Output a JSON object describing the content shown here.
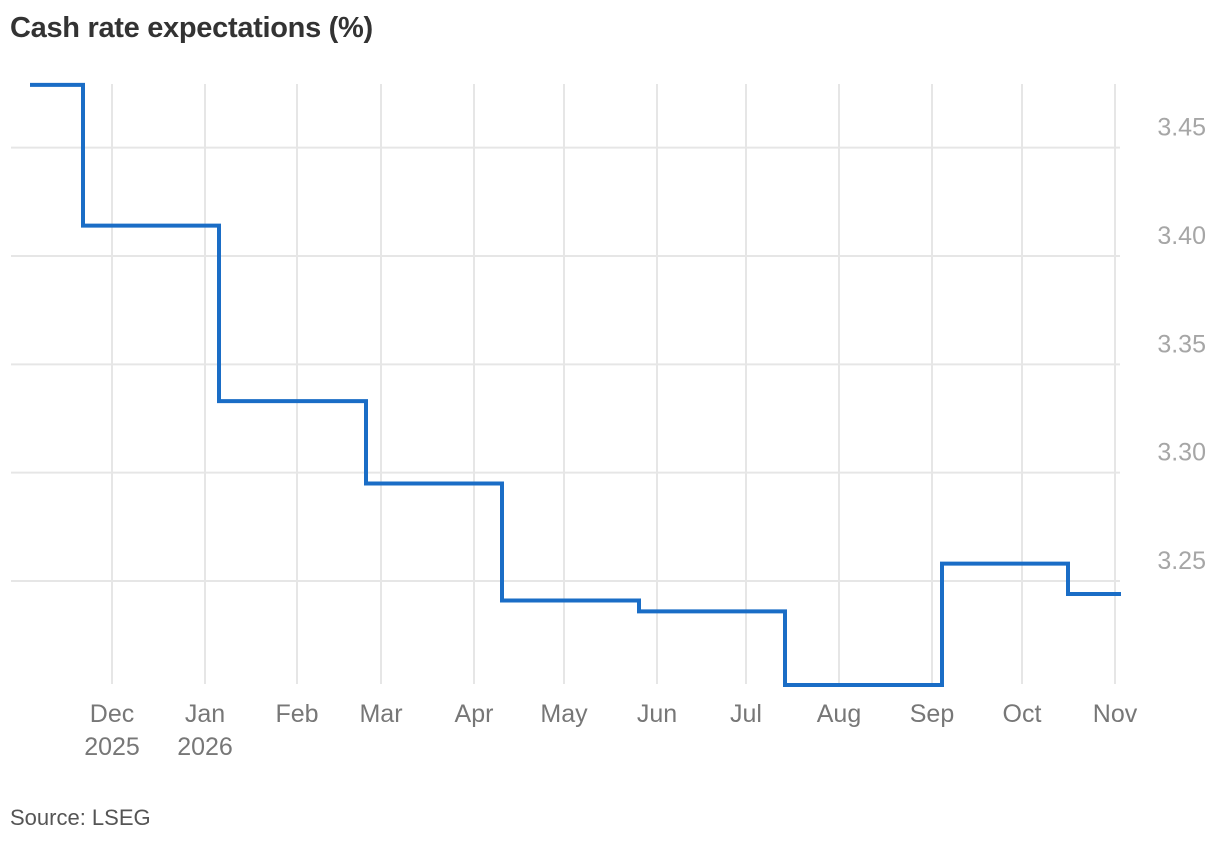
{
  "title": "Cash rate expectations (%)",
  "source": "Source: LSEG",
  "colors": {
    "line": "#1a6dc6",
    "grid": "#e6e6e6",
    "title": "#333333",
    "ytick": "#a6a6a6",
    "xtick": "#777777"
  },
  "chart_data": {
    "type": "line",
    "step": true,
    "title": "Cash rate expectations (%)",
    "xlabel": "",
    "ylabel": "%",
    "ylim": [
      3.2,
      3.48
    ],
    "yticks": [
      "3.25",
      "3.30",
      "3.35",
      "3.40",
      "3.45"
    ],
    "xticks": [
      {
        "label": "Dec",
        "sub": "2025"
      },
      {
        "label": "Jan",
        "sub": "2026"
      },
      {
        "label": "Feb",
        "sub": ""
      },
      {
        "label": "Mar",
        "sub": ""
      },
      {
        "label": "Apr",
        "sub": ""
      },
      {
        "label": "May",
        "sub": ""
      },
      {
        "label": "Jun",
        "sub": ""
      },
      {
        "label": "Jul",
        "sub": ""
      },
      {
        "label": "Aug",
        "sub": ""
      },
      {
        "label": "Sep",
        "sub": ""
      },
      {
        "label": "Oct",
        "sub": ""
      },
      {
        "label": "Nov",
        "sub": ""
      }
    ],
    "grid": true,
    "legend": "none",
    "series": [
      {
        "name": "Cash rate expectations",
        "points": [
          {
            "period": "mid Nov 2025",
            "value": 3.479
          },
          {
            "period": "Dec 2025",
            "value": 3.414
          },
          {
            "period": "Feb 2026",
            "value": 3.333
          },
          {
            "period": "Apr 2026",
            "value": 3.295
          },
          {
            "period": "May 2026",
            "value": 3.241
          },
          {
            "period": "Jun-Jul 2026",
            "value": 3.236
          },
          {
            "period": "Aug 2026",
            "value": 3.202
          },
          {
            "period": "Sep-Oct 2026",
            "value": 3.258
          },
          {
            "period": "Nov 2026",
            "value": 3.244
          }
        ]
      }
    ]
  }
}
